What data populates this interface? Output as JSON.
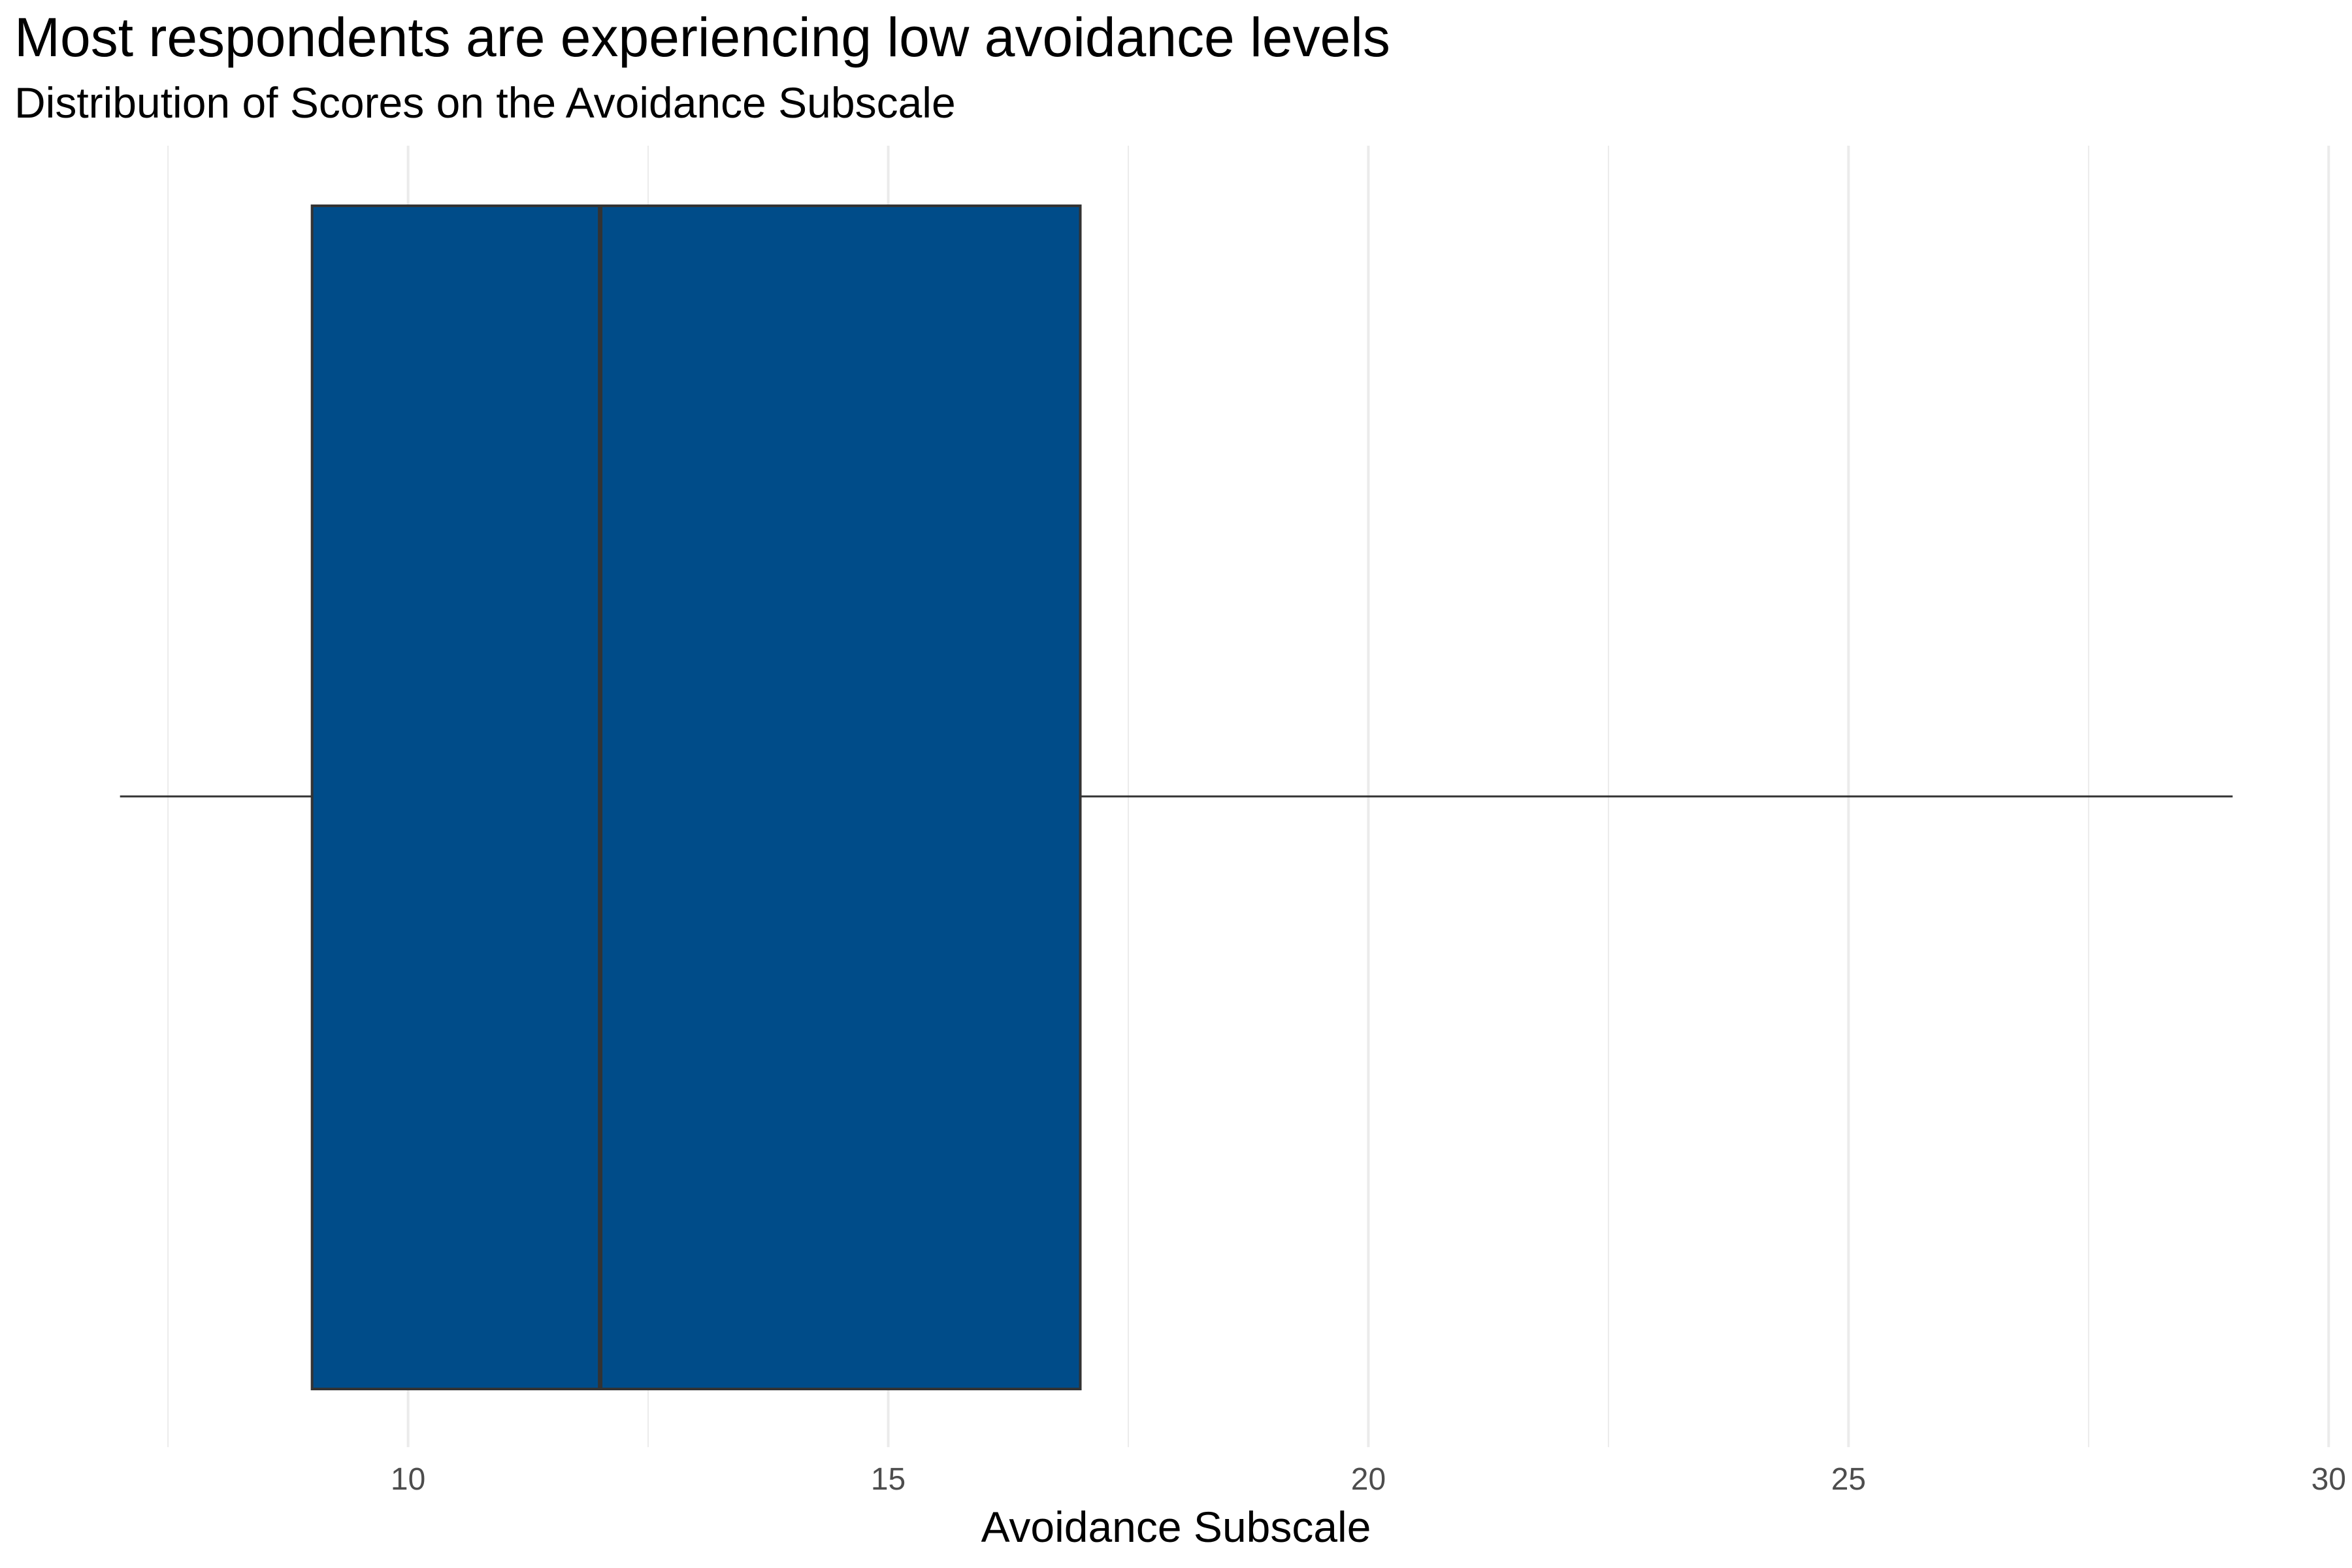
{
  "chart_data": {
    "type": "boxplot",
    "title": "Most respondents are experiencing low avoidance levels",
    "subtitle": "Distribution of Scores on the Avoidance Subscale",
    "xlabel": "Avoidance Subscale",
    "ylabel": "",
    "xlim": [
      5.9,
      30.1
    ],
    "x_ticks": [
      10,
      15,
      20,
      25,
      30
    ],
    "x_tick_labels": [
      "10",
      "15",
      "20",
      "25",
      "30"
    ],
    "minor_gridlines": [
      7.5,
      12.5,
      17.5,
      22.5,
      27.5
    ],
    "grid": true,
    "orientation": "horizontal",
    "box": {
      "whisker_low": 7,
      "q1": 9,
      "median": 12,
      "q3": 17,
      "whisker_high": 29
    },
    "colors": {
      "box_fill": "#004C89",
      "outline": "#333333",
      "grid": "#EBEBEB"
    }
  }
}
